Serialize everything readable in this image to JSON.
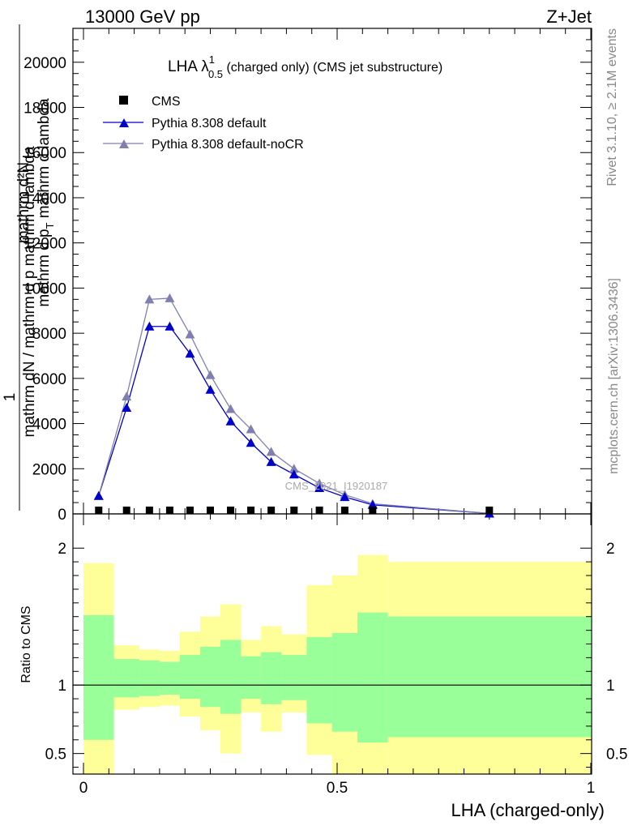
{
  "header": {
    "left": "13000 GeV pp",
    "right": "Z+Jet"
  },
  "main_title": {
    "prefix": "LHA ",
    "lambda": "λ",
    "sup": "1",
    "sub": "0.5",
    "suffix": " (charged only) (CMS jet substructure)"
  },
  "ylabel_main": {
    "line1": "mathrm d²N",
    "line2": "mathrm d p",
    "line2_sub": "T",
    "line2_end": " mathrm d lambda",
    "frac_num": "1",
    "frac_den": "mathrm dN / mathrm d p mathrm d lambda"
  },
  "ylabel_ratio": "Ratio to CMS",
  "xlabel": "LHA (charged-only)",
  "watermark": "CMS_2021_I1920187",
  "side_text": {
    "top": "Rivet 3.1.10, ≥ 2.1M events",
    "bottom": "mcplots.cern.ch [arXiv:1306.3436]"
  },
  "legend": [
    {
      "label": "CMS",
      "marker": "square",
      "color": "#000000"
    },
    {
      "label": "Pythia 8.308 default",
      "marker": "triangle",
      "color": "#0000cc"
    },
    {
      "label": "Pythia 8.308 default-noCR",
      "marker": "triangle",
      "color": "#8080b0"
    }
  ],
  "chart_data": [
    {
      "type": "line",
      "panel": "main",
      "xlim": [
        0,
        1
      ],
      "ylim": [
        0,
        21500
      ],
      "yticks": [
        0,
        2000,
        4000,
        6000,
        8000,
        10000,
        12000,
        14000,
        16000,
        18000,
        20000
      ],
      "xticks": [
        0,
        0.5,
        1
      ],
      "x": [
        0.03,
        0.085,
        0.13,
        0.17,
        0.21,
        0.25,
        0.29,
        0.33,
        0.37,
        0.415,
        0.465,
        0.515,
        0.57,
        0.8
      ],
      "series": [
        {
          "name": "CMS",
          "color": "#000000",
          "marker": "square",
          "values": [
            0,
            0,
            0,
            0,
            0,
            0,
            0,
            0,
            0,
            0,
            0,
            0,
            0,
            0
          ]
        },
        {
          "name": "Pythia 8.308 default",
          "color": "#0000cc",
          "marker": "triangle",
          "values": [
            800,
            4700,
            8300,
            8300,
            7100,
            5500,
            4100,
            3150,
            2300,
            1750,
            1150,
            750,
            400,
            20
          ]
        },
        {
          "name": "Pythia 8.308 default-noCR",
          "color": "#8080b0",
          "marker": "triangle",
          "values": [
            800,
            5200,
            9500,
            9550,
            7950,
            6150,
            4650,
            3750,
            2750,
            2000,
            1350,
            850,
            450,
            20
          ]
        }
      ]
    },
    {
      "type": "area",
      "panel": "ratio",
      "xlim": [
        0,
        1
      ],
      "ylim": [
        0.35,
        2.25
      ],
      "yticks": [
        0.5,
        1,
        2
      ],
      "xticks": [
        0,
        0.5,
        1
      ],
      "reference_line": 1,
      "bins": [
        {
          "x0": 0.0,
          "x1": 0.06,
          "green": [
            0.6,
            1.51
          ],
          "yellow": [
            0.35,
            1.89
          ]
        },
        {
          "x0": 0.06,
          "x1": 0.11,
          "green": [
            0.91,
            1.19
          ],
          "yellow": [
            0.82,
            1.29
          ]
        },
        {
          "x0": 0.11,
          "x1": 0.15,
          "green": [
            0.92,
            1.18
          ],
          "yellow": [
            0.84,
            1.26
          ]
        },
        {
          "x0": 0.15,
          "x1": 0.19,
          "green": [
            0.93,
            1.17
          ],
          "yellow": [
            0.85,
            1.25
          ]
        },
        {
          "x0": 0.19,
          "x1": 0.23,
          "green": [
            0.9,
            1.22
          ],
          "yellow": [
            0.77,
            1.39
          ]
        },
        {
          "x0": 0.23,
          "x1": 0.27,
          "green": [
            0.84,
            1.28
          ],
          "yellow": [
            0.67,
            1.5
          ]
        },
        {
          "x0": 0.27,
          "x1": 0.31,
          "green": [
            0.79,
            1.33
          ],
          "yellow": [
            0.5,
            1.59
          ]
        },
        {
          "x0": 0.31,
          "x1": 0.35,
          "green": [
            0.9,
            1.21
          ],
          "yellow": [
            0.8,
            1.33
          ]
        },
        {
          "x0": 0.35,
          "x1": 0.39,
          "green": [
            0.86,
            1.24
          ],
          "yellow": [
            0.66,
            1.43
          ]
        },
        {
          "x0": 0.39,
          "x1": 0.44,
          "green": [
            0.89,
            1.22
          ],
          "yellow": [
            0.8,
            1.37
          ]
        },
        {
          "x0": 0.44,
          "x1": 0.49,
          "green": [
            0.72,
            1.35
          ],
          "yellow": [
            0.49,
            1.73
          ]
        },
        {
          "x0": 0.49,
          "x1": 0.54,
          "green": [
            0.66,
            1.38
          ],
          "yellow": [
            0.35,
            1.8
          ]
        },
        {
          "x0": 0.54,
          "x1": 0.6,
          "green": [
            0.58,
            1.53
          ],
          "yellow": [
            0.35,
            1.95
          ]
        },
        {
          "x0": 0.6,
          "x1": 1.0,
          "green": [
            0.62,
            1.5
          ],
          "yellow": [
            0.35,
            1.9
          ]
        }
      ]
    }
  ]
}
